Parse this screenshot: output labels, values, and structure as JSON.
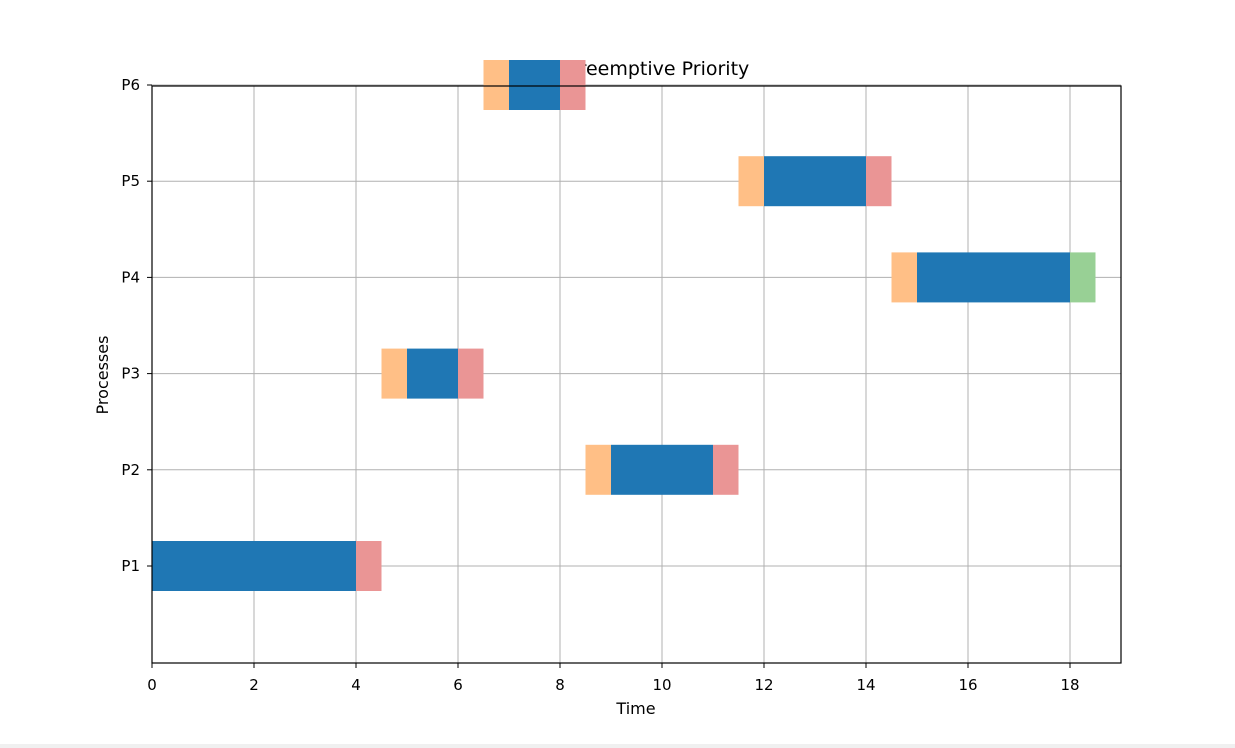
{
  "chart_data": {
    "type": "gantt",
    "title": "Non-Preemptive Priority",
    "xlabel": "Time",
    "ylabel": "Processes",
    "xlim": [
      0,
      19
    ],
    "xticks": [
      "0",
      "2",
      "4",
      "6",
      "8",
      "10",
      "12",
      "14",
      "16",
      "18"
    ],
    "categories": [
      "P1",
      "P2",
      "P3",
      "P4",
      "P5",
      "P6"
    ],
    "grid": true,
    "colors": {
      "wait": "#ffbf86",
      "run": "#1f77b4",
      "switch": "#ea9595",
      "finish": "#98d095"
    },
    "segments": [
      {
        "process": "P1",
        "kind": "run",
        "start": 0,
        "end": 4
      },
      {
        "process": "P1",
        "kind": "switch",
        "start": 4,
        "end": 4.5
      },
      {
        "process": "P3",
        "kind": "wait",
        "start": 4.5,
        "end": 5
      },
      {
        "process": "P3",
        "kind": "run",
        "start": 5,
        "end": 6
      },
      {
        "process": "P3",
        "kind": "switch",
        "start": 6,
        "end": 6.5
      },
      {
        "process": "P6",
        "kind": "wait",
        "start": 6.5,
        "end": 7
      },
      {
        "process": "P6",
        "kind": "run",
        "start": 7,
        "end": 8
      },
      {
        "process": "P6",
        "kind": "switch",
        "start": 8,
        "end": 8.5
      },
      {
        "process": "P2",
        "kind": "wait",
        "start": 8.5,
        "end": 9
      },
      {
        "process": "P2",
        "kind": "run",
        "start": 9,
        "end": 11
      },
      {
        "process": "P2",
        "kind": "switch",
        "start": 11,
        "end": 11.5
      },
      {
        "process": "P5",
        "kind": "wait",
        "start": 11.5,
        "end": 12
      },
      {
        "process": "P5",
        "kind": "run",
        "start": 12,
        "end": 14
      },
      {
        "process": "P5",
        "kind": "switch",
        "start": 14,
        "end": 14.5
      },
      {
        "process": "P4",
        "kind": "wait",
        "start": 14.5,
        "end": 15
      },
      {
        "process": "P4",
        "kind": "run",
        "start": 15,
        "end": 18
      },
      {
        "process": "P4",
        "kind": "finish",
        "start": 18,
        "end": 18.5
      }
    ]
  }
}
